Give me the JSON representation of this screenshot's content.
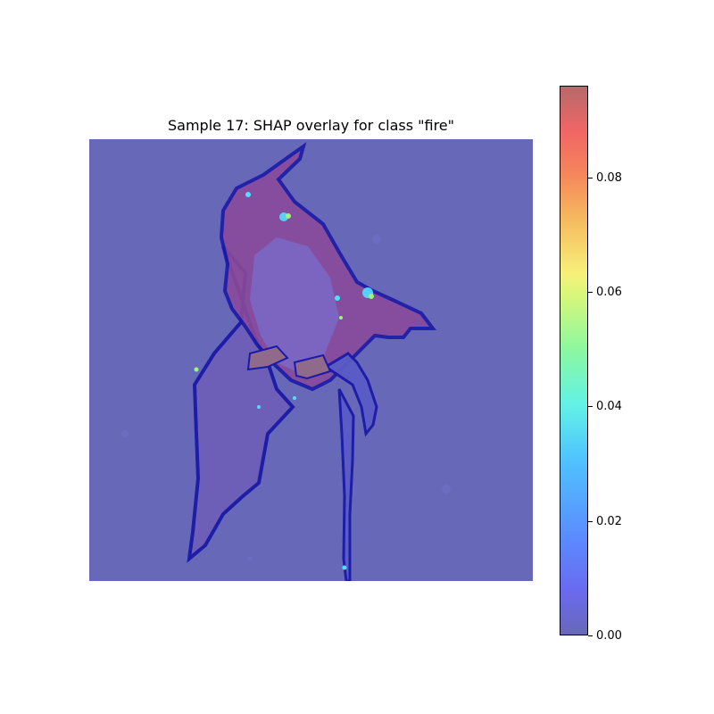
{
  "chart_data": {
    "type": "heatmap",
    "title": "Sample 17: SHAP overlay for class \"fire\"",
    "image_subject": "bird",
    "colormap": "jet",
    "colorbar": {
      "range": [
        0.0,
        0.096
      ],
      "ticks": [
        0.0,
        0.02,
        0.04,
        0.06,
        0.08
      ],
      "tick_labels": [
        "0.00",
        "0.02",
        "0.04",
        "0.06",
        "0.08"
      ]
    },
    "xlabel": "",
    "ylabel": ""
  },
  "colors": {
    "background_overlay": "#6868b9",
    "bird_body": "#8a4a9a",
    "bird_outline": "#1a1aa8",
    "highlight_mid": "#4fe0ff",
    "highlight_high": "#9af57a"
  }
}
